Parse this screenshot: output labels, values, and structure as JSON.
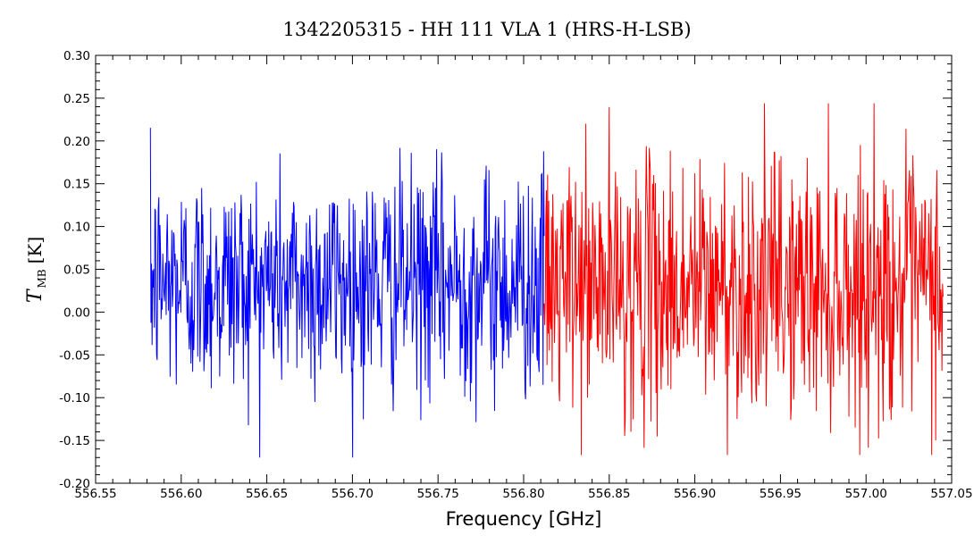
{
  "chart_data": {
    "type": "line",
    "title": "1342205315 - HH 111 VLA 1 (HRS-H-LSB)",
    "xlabel": "Frequency [GHz]",
    "ylabel": {
      "symbol": "T",
      "subscript": "MB",
      "unit": "[K]"
    },
    "xlim": [
      556.55,
      557.05
    ],
    "ylim": [
      -0.2,
      0.3
    ],
    "x_ticks": [
      "556.55",
      "556.60",
      "556.65",
      "556.70",
      "556.75",
      "556.80",
      "556.85",
      "556.90",
      "556.95",
      "557.00",
      "557.05"
    ],
    "y_ticks": [
      "-0.20",
      "-0.15",
      "-0.10",
      "-0.05",
      "0.00",
      "0.05",
      "0.10",
      "0.15",
      "0.20",
      "0.25",
      "0.30"
    ],
    "grid": false,
    "series": [
      {
        "color": "#0000ff",
        "x_range": [
          556.582,
          556.812
        ],
        "mean": 0.035,
        "sigma": 0.065,
        "samples": 700,
        "ymin": -0.17,
        "ymax": 0.245
      },
      {
        "color": "#ff0000",
        "x_range": [
          556.812,
          557.045
        ],
        "mean": 0.03,
        "sigma": 0.075,
        "samples": 700,
        "ymin": -0.167,
        "ymax": 0.244
      }
    ]
  }
}
